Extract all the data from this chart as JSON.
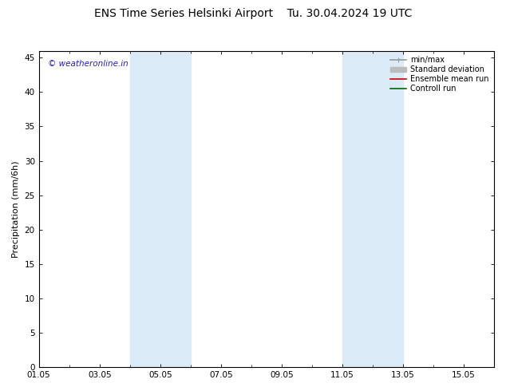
{
  "title_left": "ENS Time Series Helsinki Airport",
  "title_right": "Tu. 30.04.2024 19 UTC",
  "ylabel": "Precipitation (mm/6h)",
  "ylim": [
    0,
    46
  ],
  "yticks": [
    0,
    5,
    10,
    15,
    20,
    25,
    30,
    35,
    40,
    45
  ],
  "xtick_labels": [
    "01.05",
    "03.05",
    "05.05",
    "07.05",
    "09.05",
    "11.05",
    "13.05",
    "15.05"
  ],
  "xtick_positions": [
    0,
    2,
    4,
    6,
    8,
    10,
    12,
    14
  ],
  "xlim": [
    0,
    15
  ],
  "shaded_bands": [
    {
      "x_start": 3.0,
      "x_end": 3.5,
      "color": "#daeaf7"
    },
    {
      "x_start": 3.5,
      "x_end": 5.0,
      "color": "#daeaf7"
    },
    {
      "x_start": 10.0,
      "x_end": 10.5,
      "color": "#daeaf7"
    },
    {
      "x_start": 10.5,
      "x_end": 12.0,
      "color": "#daeaf7"
    }
  ],
  "shaded_bands2": [
    {
      "x_start": 3.0,
      "x_end": 5.0,
      "color": "#daeaf7"
    },
    {
      "x_start": 10.0,
      "x_end": 12.0,
      "color": "#daeaf7"
    }
  ],
  "watermark": "© weatheronline.in",
  "watermark_color": "#2222bb",
  "legend_items": [
    {
      "label": "min/max",
      "color": "#999999",
      "lw": 1.2,
      "style": "-"
    },
    {
      "label": "Standard deviation",
      "color": "#bbbbbb",
      "lw": 5,
      "style": "-"
    },
    {
      "label": "Ensemble mean run",
      "color": "#cc0000",
      "lw": 1.2,
      "style": "-"
    },
    {
      "label": "Controll run",
      "color": "#006600",
      "lw": 1.2,
      "style": "-"
    }
  ],
  "bg_color": "#ffffff",
  "plot_bg_color": "#ffffff",
  "title_fontsize": 10,
  "axis_label_fontsize": 8,
  "tick_fontsize": 7.5,
  "legend_fontsize": 7
}
